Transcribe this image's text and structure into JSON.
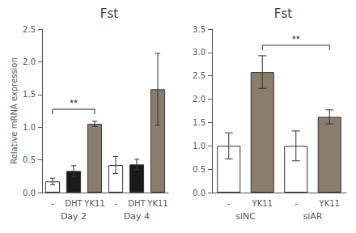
{
  "chart_data": [
    {
      "type": "bar",
      "title": "Fst",
      "ylabel": "Relative mRNA expression",
      "groups": [
        "Day 2",
        "Day 4"
      ],
      "categories": [
        "-",
        "DHT",
        "YK11",
        "-",
        "DHT",
        "YK11"
      ],
      "values": [
        0.17,
        0.33,
        1.05,
        0.42,
        0.43,
        1.58
      ],
      "errors": [
        0.05,
        0.08,
        0.04,
        0.13,
        0.08,
        0.55
      ],
      "colors": [
        "white",
        "#1a1a1a",
        "#8b7d6b",
        "white",
        "#1a1a1a",
        "#8b7d6b"
      ],
      "ylim": [
        0,
        2.5
      ],
      "yticks": [
        {
          "value": 0,
          "label": "0.0"
        },
        0.5,
        {
          "value": 1,
          "label": "1.0"
        },
        1.5,
        {
          "value": 2,
          "label": "2.0"
        },
        2.5
      ],
      "annotations": [
        {
          "text": "**",
          "from": 0,
          "to": 2,
          "y": 1.2
        }
      ],
      "grid": false
    },
    {
      "type": "bar",
      "title": "Fst",
      "groups": [
        "siNC",
        "siAR"
      ],
      "categories": [
        "-",
        "YK11",
        "-",
        "YK11"
      ],
      "values": [
        1.0,
        2.58,
        1.0,
        1.62
      ],
      "errors": [
        0.28,
        0.35,
        0.32,
        0.15
      ],
      "colors": [
        "white",
        "#8b7d6b",
        "white",
        "#8b7d6b"
      ],
      "ylim": [
        0,
        3.5
      ],
      "yticks": [
        {
          "value": 0,
          "label": "0.0"
        },
        0.5,
        {
          "value": 1,
          "label": "1.0"
        },
        1.5,
        {
          "value": 2,
          "label": "2.0"
        },
        2.5,
        {
          "value": 3,
          "label": "3.0"
        },
        3.5
      ],
      "annotations": [
        {
          "text": "**",
          "from": 1,
          "to": 3,
          "y": 3.05
        }
      ],
      "grid": false
    }
  ]
}
